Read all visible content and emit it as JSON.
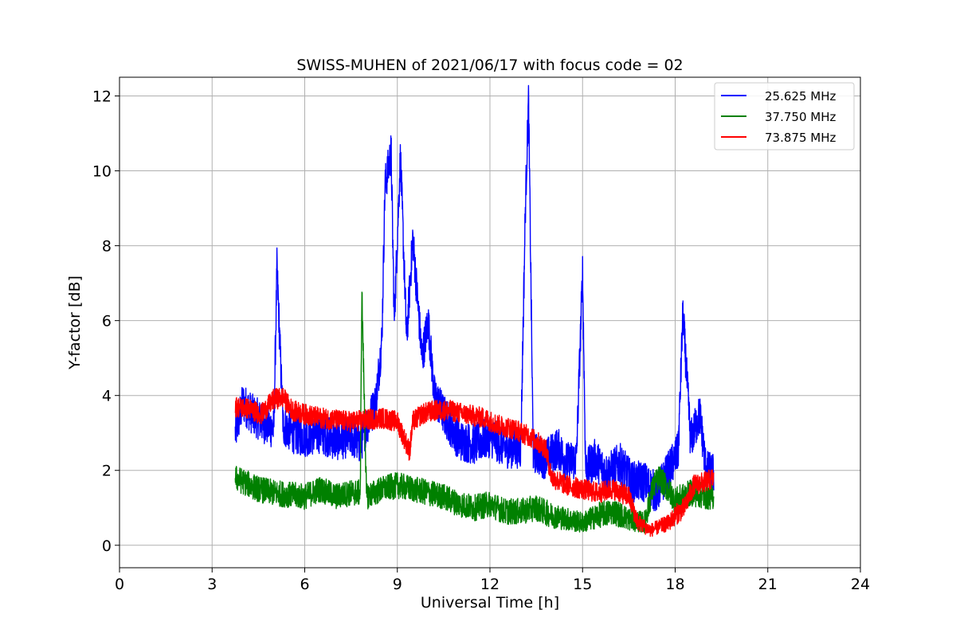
{
  "chart_data": {
    "type": "line",
    "title": "SWISS-MUHEN of 2021/06/17 with focus code = 02",
    "xlabel": "Universal Time [h]",
    "ylabel": "Y-factor [dB]",
    "xlim": [
      0,
      24
    ],
    "ylim": [
      -0.6,
      12.5
    ],
    "xticks": [
      0,
      3,
      6,
      9,
      12,
      15,
      18,
      21,
      24
    ],
    "yticks": [
      0,
      2,
      4,
      6,
      8,
      10,
      12
    ],
    "grid": true,
    "legend_position": "top-right",
    "series": [
      {
        "name": "25.625 MHz",
        "color": "#0000ff",
        "x": [
          3.75,
          4.0,
          4.3,
          4.6,
          5.0,
          5.1,
          5.3,
          5.6,
          6.0,
          6.5,
          7.0,
          7.5,
          7.8,
          8.0,
          8.3,
          8.5,
          8.6,
          8.8,
          8.9,
          9.1,
          9.3,
          9.5,
          9.8,
          10.0,
          10.2,
          10.5,
          11.0,
          11.5,
          12.0,
          12.5,
          13.0,
          13.15,
          13.25,
          13.4,
          13.8,
          14.2,
          14.5,
          14.8,
          15.0,
          15.1,
          15.4,
          15.8,
          16.2,
          16.6,
          17.0,
          17.4,
          17.8,
          18.1,
          18.25,
          18.5,
          18.8,
          19.0,
          19.25
        ],
        "y": [
          3.0,
          3.8,
          3.5,
          3.3,
          3.1,
          7.4,
          3.2,
          3.0,
          2.9,
          3.0,
          2.8,
          2.9,
          2.7,
          3.2,
          3.8,
          5.5,
          9.6,
          10.5,
          6.0,
          10.4,
          5.5,
          8.2,
          5.0,
          6.0,
          4.0,
          3.5,
          2.8,
          2.7,
          2.9,
          2.6,
          2.6,
          9.1,
          11.9,
          2.5,
          2.3,
          2.6,
          2.2,
          2.3,
          7.3,
          2.0,
          2.3,
          1.9,
          2.2,
          1.7,
          1.7,
          1.4,
          2.0,
          2.5,
          6.2,
          2.8,
          3.5,
          2.0,
          1.9
        ]
      },
      {
        "name": "37.750 MHz",
        "color": "#008000",
        "x": [
          3.75,
          4.0,
          4.5,
          5.0,
          5.5,
          6.0,
          6.5,
          7.0,
          7.5,
          7.8,
          7.85,
          8.0,
          8.5,
          9.0,
          9.5,
          10.0,
          10.5,
          11.0,
          11.5,
          12.0,
          12.5,
          13.0,
          13.5,
          14.0,
          14.5,
          15.0,
          15.5,
          16.0,
          16.5,
          17.0,
          17.3,
          17.5,
          18.0,
          18.5,
          19.0,
          19.25
        ],
        "y": [
          1.8,
          1.7,
          1.5,
          1.4,
          1.35,
          1.3,
          1.5,
          1.3,
          1.4,
          1.4,
          6.8,
          1.3,
          1.5,
          1.6,
          1.5,
          1.4,
          1.3,
          1.1,
          1.0,
          1.1,
          0.9,
          0.9,
          1.0,
          0.8,
          0.7,
          0.6,
          0.8,
          0.9,
          0.7,
          0.6,
          1.6,
          1.8,
          1.2,
          1.4,
          1.3,
          1.3
        ]
      },
      {
        "name": "73.875 MHz",
        "color": "#ff0000",
        "x": [
          3.75,
          4.2,
          4.6,
          5.0,
          5.3,
          5.6,
          6.0,
          6.5,
          7.0,
          7.5,
          8.0,
          8.5,
          9.0,
          9.4,
          9.5,
          9.8,
          10.2,
          10.7,
          11.2,
          11.8,
          12.3,
          12.8,
          13.3,
          13.8,
          14.0,
          14.5,
          15.0,
          15.5,
          16.0,
          16.5,
          16.8,
          17.2,
          17.5,
          17.8,
          18.0,
          18.3,
          18.6,
          19.0,
          19.25
        ],
        "y": [
          3.7,
          3.65,
          3.5,
          3.9,
          3.95,
          3.6,
          3.5,
          3.4,
          3.35,
          3.3,
          3.35,
          3.4,
          3.3,
          2.5,
          3.3,
          3.5,
          3.6,
          3.6,
          3.5,
          3.4,
          3.2,
          3.1,
          2.9,
          2.6,
          1.8,
          1.6,
          1.5,
          1.4,
          1.5,
          1.3,
          0.6,
          0.4,
          0.5,
          0.6,
          0.8,
          1.0,
          1.6,
          1.7,
          1.8
        ]
      }
    ]
  }
}
